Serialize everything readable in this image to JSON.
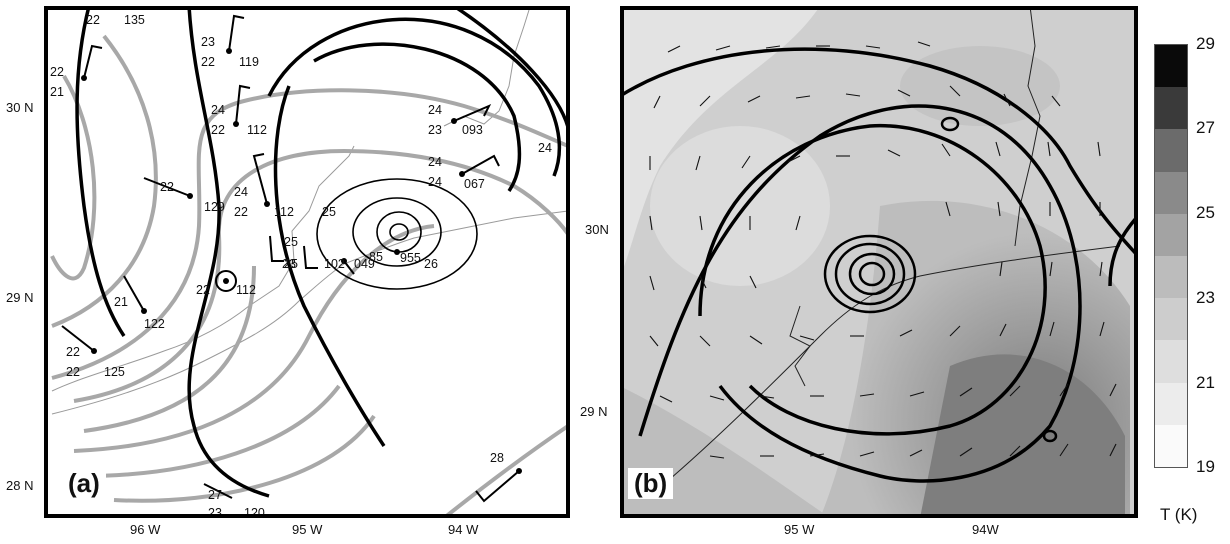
{
  "panel_a": {
    "label": "(a)",
    "lat_labels": [
      "30 N",
      "29 N",
      "28 N"
    ],
    "lon_labels": [
      "96 W",
      "95 W",
      "94 W"
    ],
    "station_numbers": [
      "22",
      "135",
      "23",
      "22",
      "119",
      "22",
      "21",
      "24",
      "22",
      "112",
      "24",
      "23",
      "093",
      "24",
      "22",
      "129",
      "24",
      "22",
      "112",
      "25",
      "24",
      "24",
      "067",
      "25",
      "049",
      "26",
      "25",
      "23",
      "102",
      "85",
      "955",
      "21",
      "22",
      "112",
      "122",
      "22",
      "22",
      "125",
      "27",
      "23",
      "120",
      "28"
    ]
  },
  "panel_b": {
    "label": "(b)",
    "lat_labels": [
      "30N",
      "29 N"
    ],
    "lon_labels": [
      "95 W",
      "94W"
    ]
  },
  "colorbar": {
    "ticks": [
      "29",
      "27",
      "25",
      "23",
      "21",
      "19"
    ],
    "unit": "T (K)",
    "colors": [
      "#0a0a0a",
      "#3a3a3a",
      "#6b6b6b",
      "#8a8a8a",
      "#a3a3a3",
      "#bcbcbc",
      "#cdcdcd",
      "#dedede",
      "#ececec",
      "#fafafa"
    ]
  }
}
